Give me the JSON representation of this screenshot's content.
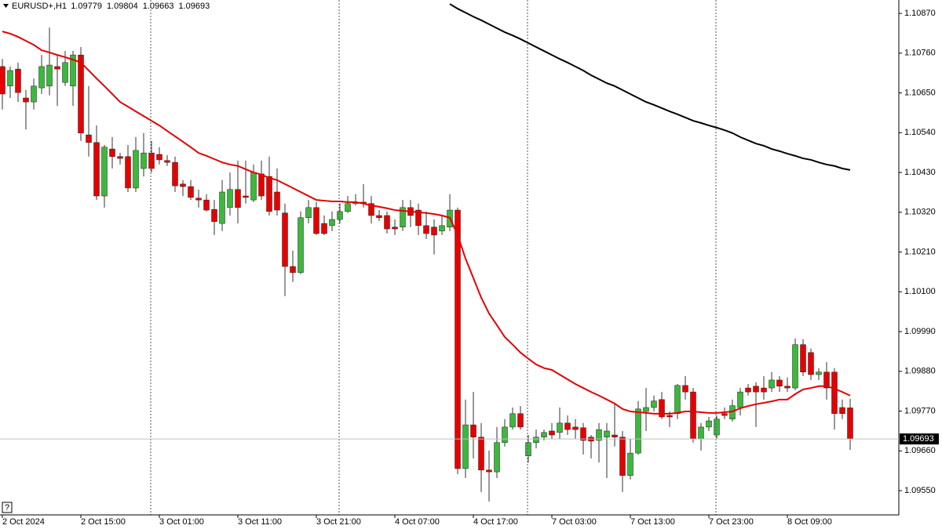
{
  "chart_data": {
    "type": "candlestick",
    "title": "EURUSD+,H1",
    "help": "?",
    "categories": [
      "2 Oct 2024",
      null,
      null,
      null,
      null,
      null,
      null,
      null,
      null,
      null,
      "2 Oct 15:00",
      null,
      null,
      null,
      null,
      null,
      null,
      null,
      null,
      null,
      "3 Oct 01:00",
      null,
      null,
      null,
      null,
      null,
      null,
      null,
      null,
      null,
      "3 Oct 11:00",
      null,
      null,
      null,
      null,
      null,
      null,
      null,
      null,
      null,
      "3 Oct 21:00",
      null,
      null,
      null,
      null,
      null,
      null,
      null,
      null,
      null,
      "4 Oct 07:00",
      null,
      null,
      null,
      null,
      null,
      null,
      null,
      null,
      null,
      "4 Oct 17:00",
      null,
      null,
      null,
      null,
      null,
      null,
      null,
      null,
      null,
      "7 Oct 03:00",
      null,
      null,
      null,
      null,
      null,
      null,
      null,
      null,
      null,
      "7 Oct 13:00",
      null,
      null,
      null,
      null,
      null,
      null,
      null,
      null,
      null,
      "7 Oct 23:00",
      null,
      null,
      null,
      null,
      null,
      null,
      null,
      null,
      null,
      "8 Oct 09:00",
      null,
      null,
      null,
      null,
      null,
      null,
      null,
      null
    ],
    "open": [
      1.10723,
      1.10669,
      1.10716,
      1.10636,
      1.10625,
      1.10664,
      1.10669,
      1.10723,
      1.10679,
      1.10669,
      1.10755,
      1.10534,
      1.10513,
      1.10365,
      1.10495,
      1.10474,
      1.10474,
      1.10387,
      1.10441,
      1.10484,
      1.1048,
      1.10463,
      1.10458,
      1.10398,
      1.10391,
      1.10359,
      1.10354,
      1.10328,
      1.10289,
      1.10333,
      1.10383,
      1.10365,
      1.10354,
      1.10426,
      1.10419,
      1.10376,
      1.10318,
      1.1017,
      1.10153,
      1.10305,
      1.10333,
      1.10289,
      1.10283,
      1.103,
      1.10322,
      1.10344,
      1.10348,
      1.10344,
      1.10311,
      1.10311,
      1.10279,
      1.10279,
      1.10333,
      1.10326,
      1.10283,
      1.10279,
      1.10268,
      1.10279,
      1.10326,
      1.09611,
      1.09732,
      1.09698,
      1.09607,
      1.09602,
      1.09683,
      1.09726,
      1.09763,
      1.09646,
      1.09683,
      1.09698,
      1.09715,
      1.09711,
      1.09737,
      1.09726,
      1.09724,
      1.09698,
      1.09689,
      1.09698,
      1.09704,
      1.09698,
      1.09592,
      1.09654,
      1.09769,
      1.0978,
      1.09802,
      1.09758,
      1.09763,
      1.09841,
      1.09823,
      1.09693,
      1.09726,
      1.09704,
      1.09763,
      1.09748,
      1.0978,
      1.09834,
      1.09839,
      1.09834,
      1.09834,
      1.09856,
      1.09839,
      1.09834,
      1.09954,
      1.09932,
      1.09871,
      1.09878,
      1.09878,
      1.0978,
      1.09779
    ],
    "high": [
      1.10744,
      1.10723,
      1.10734,
      1.10658,
      1.1069,
      1.10755,
      1.10831,
      1.10755,
      1.10766,
      1.10766,
      1.10777,
      1.10669,
      1.1056,
      1.10506,
      1.10528,
      1.10484,
      1.10506,
      1.10528,
      1.10539,
      1.10517,
      1.105,
      1.10478,
      1.10474,
      1.10409,
      1.10409,
      1.10383,
      1.1037,
      1.10354,
      1.10409,
      1.1043,
      1.10463,
      1.10463,
      1.10452,
      1.10463,
      1.10474,
      1.10441,
      1.10344,
      1.10214,
      1.10322,
      1.10354,
      1.10348,
      1.10311,
      1.10322,
      1.10344,
      1.10365,
      1.1037,
      1.10398,
      1.10365,
      1.10326,
      1.10322,
      1.103,
      1.10354,
      1.10354,
      1.10344,
      1.10322,
      1.103,
      1.10311,
      1.1037,
      1.10333,
      1.09802,
      1.09823,
      1.09737,
      1.09661,
      1.09726,
      1.09748,
      1.0978,
      1.09784,
      1.09704,
      1.09719,
      1.09719,
      1.09737,
      1.0978,
      1.09758,
      1.09748,
      1.09737,
      1.09704,
      1.09737,
      1.09737,
      1.09791,
      1.09715,
      1.09693,
      1.09798,
      1.09834,
      1.09813,
      1.09823,
      1.09769,
      1.09845,
      1.09867,
      1.09834,
      1.09737,
      1.09754,
      1.09758,
      1.0978,
      1.09802,
      1.09834,
      1.09845,
      1.0985,
      1.09867,
      1.09878,
      1.09867,
      1.09863,
      1.09971,
      1.09969,
      1.09943,
      1.09889,
      1.09906,
      1.09889,
      1.09802,
      1.09804
    ],
    "low": [
      1.10604,
      1.10636,
      1.10625,
      1.10549,
      1.10604,
      1.10647,
      1.10643,
      1.10614,
      1.10669,
      1.10614,
      1.10517,
      1.10474,
      1.10354,
      1.10333,
      1.10441,
      1.10452,
      1.10376,
      1.10376,
      1.10419,
      1.1043,
      1.10452,
      1.10448,
      1.10376,
      1.10365,
      1.10354,
      1.10333,
      1.10322,
      1.10257,
      1.10268,
      1.10311,
      1.10289,
      1.10344,
      1.10348,
      1.10354,
      1.10311,
      1.10311,
      1.10088,
      1.10127,
      1.10149,
      1.10289,
      1.10257,
      1.10257,
      1.10268,
      1.10289,
      1.10318,
      1.10339,
      1.10333,
      1.10289,
      1.10296,
      1.10261,
      1.10257,
      1.10268,
      1.10279,
      1.10257,
      1.10246,
      1.10203,
      1.10257,
      1.10268,
      1.09596,
      1.09585,
      1.09639,
      1.09546,
      1.0952,
      1.09585,
      1.09672,
      1.09719,
      1.09719,
      1.09628,
      1.09667,
      1.09689,
      1.09693,
      1.09693,
      1.09704,
      1.09693,
      1.0965,
      1.09639,
      1.09628,
      1.09585,
      1.09672,
      1.09546,
      1.09581,
      1.0965,
      1.09715,
      1.09769,
      1.09748,
      1.09726,
      1.09748,
      1.09802,
      1.09683,
      1.09661,
      1.09715,
      1.09693,
      1.09748,
      1.09741,
      1.09758,
      1.09813,
      1.09726,
      1.09802,
      1.09823,
      1.09823,
      1.09823,
      1.09828,
      1.09867,
      1.09856,
      1.09856,
      1.09802,
      1.09719,
      1.09748,
      1.09663
    ],
    "close": [
      1.10647,
      1.10712,
      1.10651,
      1.10625,
      1.10669,
      1.10723,
      1.10727,
      1.10716,
      1.10734,
      1.10755,
      1.10539,
      1.10513,
      1.10365,
      1.105,
      1.10474,
      1.10469,
      1.10387,
      1.10491,
      1.10484,
      1.10441,
      1.10465,
      1.10458,
      1.10393,
      1.10391,
      1.10361,
      1.10354,
      1.10326,
      1.10294,
      1.10376,
      1.10383,
      1.10333,
      1.10361,
      1.1043,
      1.10365,
      1.10322,
      1.10326,
      1.1017,
      1.10153,
      1.10305,
      1.10333,
      1.10261,
      1.10261,
      1.103,
      1.10322,
      1.10344,
      1.10348,
      1.10344,
      1.10311,
      1.10305,
      1.10274,
      1.10274,
      1.10333,
      1.10311,
      1.10283,
      1.10261,
      1.10257,
      1.10283,
      1.10326,
      1.09611,
      1.09732,
      1.09698,
      1.09607,
      1.09602,
      1.09683,
      1.09726,
      1.09763,
      1.09726,
      1.09683,
      1.09698,
      1.09711,
      1.09704,
      1.09737,
      1.09719,
      1.09719,
      1.09689,
      1.09687,
      1.09719,
      1.09715,
      1.09698,
      1.09592,
      1.09654,
      1.09776,
      1.0978,
      1.09798,
      1.09754,
      1.09754,
      1.09841,
      1.09823,
      1.09693,
      1.09726,
      1.09743,
      1.09748,
      1.09758,
      1.09785,
      1.09823,
      1.09823,
      1.09823,
      1.09823,
      1.09856,
      1.09839,
      1.09834,
      1.09954,
      1.09878,
      1.09871,
      1.09878,
      1.09834,
      1.09763,
      1.09763,
      1.09693
    ],
    "up_color": "#3cb83c",
    "down_color": "#e60000",
    "lines": [
      {
        "color": "#e60000",
        "values": [
          1.1082,
          1.10814,
          1.10805,
          1.10794,
          1.10783,
          1.10768,
          1.10762,
          1.10755,
          1.10749,
          1.10742,
          1.10734,
          1.10712,
          1.1069,
          1.10669,
          1.10647,
          1.10625,
          1.10612,
          1.10599,
          1.10586,
          1.10573,
          1.1056,
          1.10545,
          1.1053,
          1.10515,
          1.105,
          1.10484,
          1.10476,
          1.10467,
          1.10458,
          1.10452,
          1.10448,
          1.10439,
          1.1043,
          1.10424,
          1.10415,
          1.10409,
          1.10398,
          1.10387,
          1.10376,
          1.10365,
          1.10354,
          1.10352,
          1.1035,
          1.1035,
          1.10348,
          1.10348,
          1.10344,
          1.10339,
          1.10335,
          1.10331,
          1.10326,
          1.10324,
          1.10322,
          1.1032,
          1.10318,
          1.10315,
          1.10311,
          1.10305,
          1.10257,
          1.10192,
          1.10138,
          1.10084,
          1.1004,
          1.10008,
          1.09975,
          1.09954,
          1.09932,
          1.09915,
          1.09899,
          1.09889,
          1.09884,
          1.09871,
          1.09858,
          1.09845,
          1.09834,
          1.09823,
          1.09813,
          1.09802,
          1.09791,
          1.09776,
          1.09769,
          1.09767,
          1.09765,
          1.09763,
          1.09763,
          1.09763,
          1.09765,
          1.09769,
          1.09769,
          1.09767,
          1.09765,
          1.09765,
          1.09767,
          1.09769,
          1.09778,
          1.09784,
          1.09789,
          1.09793,
          1.09797,
          1.09802,
          1.09802,
          1.09817,
          1.0983,
          1.09834,
          1.09839,
          1.09839,
          1.09832,
          1.09823,
          1.09813
        ]
      },
      {
        "color": "#000000",
        "values": [
          null,
          null,
          null,
          null,
          null,
          null,
          null,
          null,
          null,
          null,
          null,
          null,
          null,
          null,
          null,
          null,
          null,
          null,
          null,
          null,
          null,
          null,
          null,
          null,
          null,
          null,
          null,
          null,
          null,
          null,
          null,
          null,
          null,
          null,
          null,
          null,
          null,
          null,
          null,
          null,
          null,
          null,
          null,
          null,
          null,
          null,
          null,
          null,
          null,
          null,
          null,
          null,
          null,
          null,
          null,
          null,
          null,
          1.10896,
          1.10883,
          1.10872,
          1.10861,
          1.10851,
          1.1084,
          1.10829,
          1.10818,
          1.10809,
          1.10799,
          1.10788,
          1.10777,
          1.10766,
          1.10755,
          1.10744,
          1.10734,
          1.10723,
          1.10712,
          1.10699,
          1.10688,
          1.10677,
          1.10669,
          1.10658,
          1.10647,
          1.10636,
          1.10625,
          1.10617,
          1.10608,
          1.10599,
          1.10591,
          1.10582,
          1.10573,
          1.10567,
          1.1056,
          1.10554,
          1.10547,
          1.10539,
          1.10528,
          1.10519,
          1.1051,
          1.10504,
          1.10495,
          1.10489,
          1.10482,
          1.10476,
          1.10469,
          1.10465,
          1.10458,
          1.10452,
          1.10448,
          1.10441,
          1.10437
        ]
      }
    ],
    "ylim": [
      1.09483,
      1.10907
    ],
    "yticks": [
      {
        "value": 1.1087,
        "label": "1.10870"
      },
      {
        "value": 1.1076,
        "label": "1.10760"
      },
      {
        "value": 1.1065,
        "label": "1.10650"
      },
      {
        "value": 1.1054,
        "label": "1.10540"
      },
      {
        "value": 1.1043,
        "label": "1.10430"
      },
      {
        "value": 1.1032,
        "label": "1.10320"
      },
      {
        "value": 1.1021,
        "label": "1.10210"
      },
      {
        "value": 1.101,
        "label": "1.10100"
      },
      {
        "value": 1.0999,
        "label": "1.09990"
      },
      {
        "value": 1.0988,
        "label": "1.09880"
      },
      {
        "value": 1.0977,
        "label": "1.09770"
      },
      {
        "value": 1.0966,
        "label": "1.09660"
      },
      {
        "value": 1.0955,
        "label": "1.09550"
      }
    ]
  }
}
